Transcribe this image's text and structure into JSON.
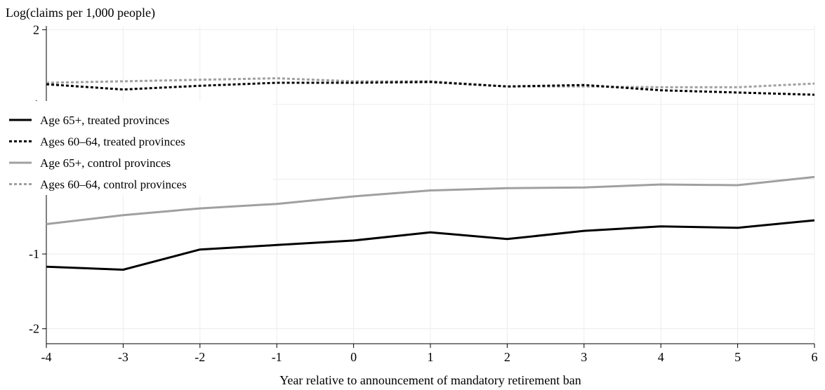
{
  "chart_data": {
    "type": "line",
    "title": "",
    "ylabel": "Log(claims per 1,000 people)",
    "xlabel": "Year relative to announcement of mandatory retirement ban",
    "x": [
      -4,
      -3,
      -2,
      -1,
      0,
      1,
      2,
      3,
      4,
      5,
      6
    ],
    "xlim": [
      -4,
      6
    ],
    "ylim": [
      -2.2,
      2.05
    ],
    "xticks": [
      -4,
      -3,
      -2,
      -1,
      0,
      1,
      2,
      3,
      4,
      5,
      6
    ],
    "yticks": [
      -2,
      -1,
      0,
      1,
      2
    ],
    "grid": true,
    "legend_position": "left",
    "series": [
      {
        "name": "Age 65+, treated provinces",
        "color": "#000000",
        "dash": "solid",
        "values": [
          -1.17,
          -1.21,
          -0.94,
          -0.88,
          -0.82,
          -0.71,
          -0.8,
          -0.69,
          -0.63,
          -0.65,
          -0.55
        ]
      },
      {
        "name": "Ages 60–64, treated provinces",
        "color": "#000000",
        "dash": "dashed",
        "values": [
          1.27,
          1.2,
          1.25,
          1.29,
          1.29,
          1.3,
          1.24,
          1.26,
          1.19,
          1.16,
          1.13
        ]
      },
      {
        "name": "Age 65+, control provinces",
        "color": "#a0a0a0",
        "dash": "solid",
        "values": [
          -0.6,
          -0.48,
          -0.39,
          -0.33,
          -0.23,
          -0.15,
          -0.12,
          -0.11,
          -0.07,
          -0.08,
          0.03
        ]
      },
      {
        "name": "Ages 60–64, control provinces",
        "color": "#a0a0a0",
        "dash": "dashed",
        "values": [
          1.29,
          1.31,
          1.33,
          1.35,
          1.31,
          1.31,
          1.24,
          1.24,
          1.23,
          1.23,
          1.28
        ]
      }
    ]
  }
}
